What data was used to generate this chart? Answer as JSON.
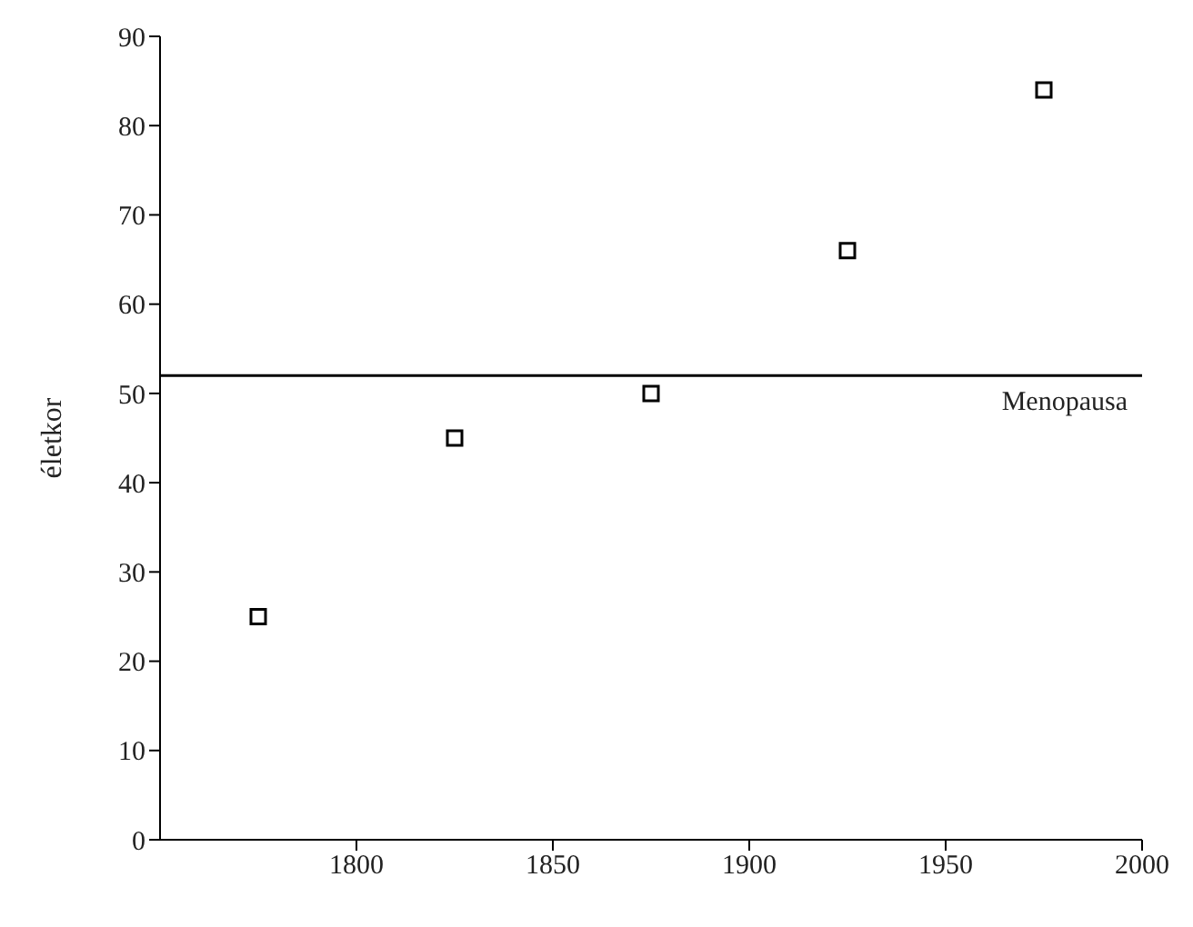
{
  "chart_data": {
    "type": "scatter",
    "ylabel": "életkor",
    "x": [
      1775,
      1825,
      1875,
      1925,
      1975
    ],
    "series": [
      {
        "color": "#000000",
        "values": [
          25,
          45,
          50,
          66,
          84
        ]
      }
    ],
    "xlim": [
      1750,
      2000
    ],
    "xticks": [
      1800,
      1850,
      1900,
      1950,
      2000
    ],
    "ylim": [
      0,
      90
    ],
    "yticks": [
      0,
      10,
      20,
      30,
      40,
      50,
      60,
      70,
      80,
      90
    ],
    "ref_lines": [
      {
        "axis": "y",
        "value": 52,
        "label": "Menopausa",
        "color": "#000000"
      }
    ],
    "marker": "square",
    "grid": false,
    "legend": false
  }
}
